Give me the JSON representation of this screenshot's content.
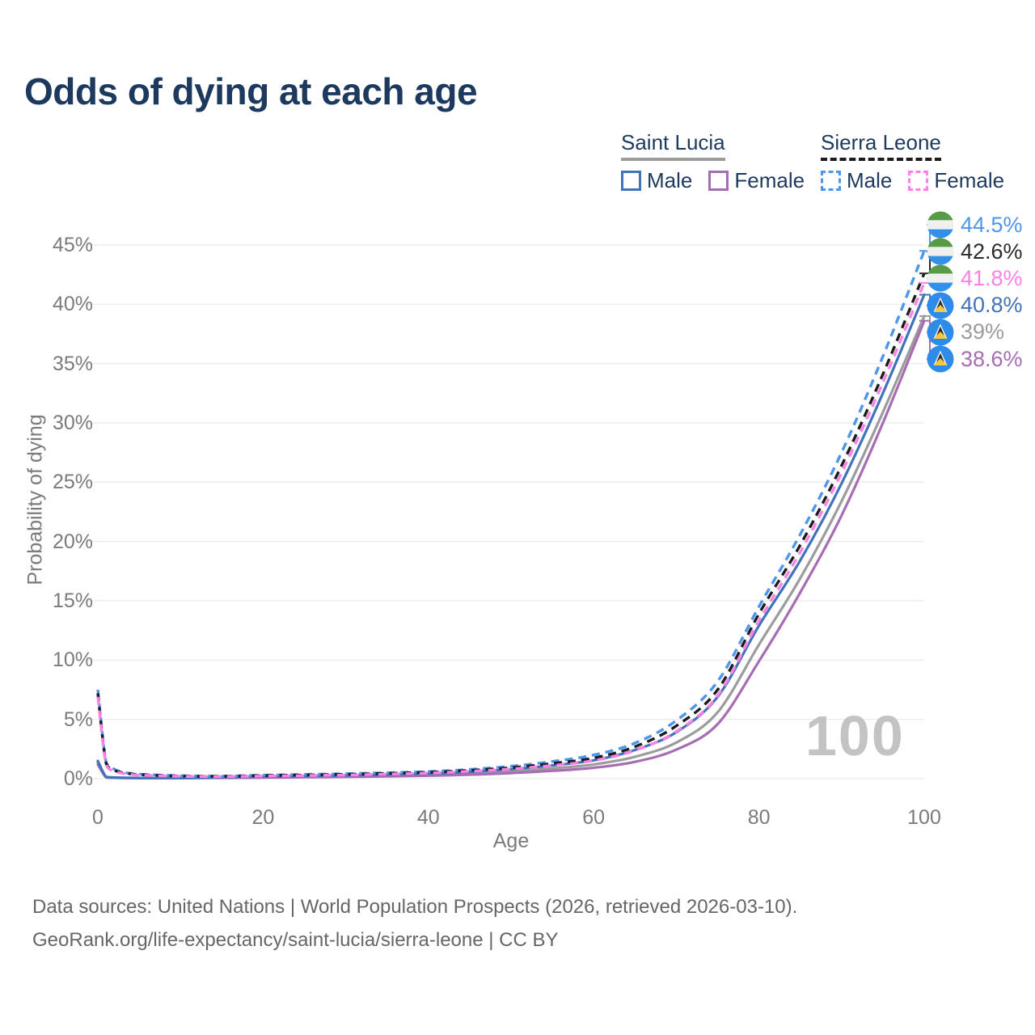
{
  "title": "Odds of dying at each age",
  "watermark": "100",
  "legend": {
    "groups": [
      {
        "name": "Saint Lucia",
        "underline": {
          "style": "solid",
          "color": "#9c9c9c"
        },
        "items": [
          {
            "label": "Male",
            "color": "#4273b8",
            "dashed": false
          },
          {
            "label": "Female",
            "color": "#a76db3",
            "dashed": false
          }
        ]
      },
      {
        "name": "Sierra Leone",
        "underline": {
          "style": "dashed",
          "color": "#1c1c1c"
        },
        "items": [
          {
            "label": "Male",
            "color": "#4e95ec",
            "dashed": true
          },
          {
            "label": "Female",
            "color": "#ff80e8",
            "dashed": true
          }
        ]
      }
    ]
  },
  "chart_data": {
    "type": "line",
    "xlabel": "Age",
    "ylabel": "Probability of dying",
    "x_ticks": [
      0,
      20,
      40,
      60,
      80,
      100
    ],
    "y_ticks": [
      0,
      5,
      10,
      15,
      20,
      25,
      30,
      35,
      40,
      45
    ],
    "xlim": [
      0,
      100
    ],
    "ylim": [
      0,
      47
    ],
    "grid": "horizontal",
    "legend_position": "top-right",
    "ages": [
      0,
      1,
      2,
      3,
      4,
      5,
      10,
      15,
      20,
      25,
      30,
      35,
      40,
      45,
      50,
      55,
      60,
      65,
      70,
      75,
      80,
      85,
      90,
      95,
      100
    ],
    "series": [
      {
        "name": "Saint Lucia Total",
        "country": "Saint Lucia",
        "sex": "Total",
        "color": "#9c9c9c",
        "dashed": false,
        "values": [
          1.35,
          0.13,
          0.09,
          0.07,
          0.06,
          0.055,
          0.05,
          0.09,
          0.13,
          0.17,
          0.21,
          0.26,
          0.34,
          0.45,
          0.62,
          0.87,
          1.2,
          1.85,
          3.05,
          5.6,
          11.3,
          16.9,
          23.4,
          30.9,
          39.0
        ]
      },
      {
        "name": "Saint Lucia Female",
        "country": "Saint Lucia",
        "sex": "Female",
        "color": "#a76db3",
        "dashed": false,
        "values": [
          1.2,
          0.11,
          0.08,
          0.06,
          0.055,
          0.05,
          0.045,
          0.07,
          0.09,
          0.12,
          0.15,
          0.19,
          0.25,
          0.34,
          0.47,
          0.66,
          0.92,
          1.42,
          2.45,
          4.6,
          9.9,
          15.7,
          22.2,
          30.0,
          38.6
        ]
      },
      {
        "name": "Saint Lucia Male",
        "country": "Saint Lucia",
        "sex": "Male",
        "color": "#4273b8",
        "dashed": false,
        "values": [
          1.5,
          0.15,
          0.1,
          0.08,
          0.07,
          0.06,
          0.06,
          0.12,
          0.18,
          0.23,
          0.28,
          0.34,
          0.43,
          0.57,
          0.8,
          1.12,
          1.55,
          2.42,
          3.92,
          6.9,
          12.9,
          18.4,
          24.9,
          32.5,
          40.8
        ]
      },
      {
        "name": "Sierra Leone Male",
        "country": "Sierra Leone",
        "sex": "Male",
        "color": "#4e95ec",
        "dashed": true,
        "values": [
          7.5,
          1.4,
          0.8,
          0.55,
          0.45,
          0.38,
          0.25,
          0.22,
          0.3,
          0.36,
          0.42,
          0.5,
          0.6,
          0.78,
          1.05,
          1.45,
          2.0,
          3.0,
          4.9,
          8.2,
          14.5,
          20.6,
          27.5,
          35.6,
          44.5
        ]
      },
      {
        "name": "Sierra Leone Total",
        "country": "Sierra Leone",
        "sex": "Total",
        "color": "#1c1c1c",
        "dashed": true,
        "values": [
          7.2,
          1.3,
          0.72,
          0.5,
          0.4,
          0.34,
          0.22,
          0.2,
          0.26,
          0.31,
          0.37,
          0.44,
          0.54,
          0.7,
          0.93,
          1.28,
          1.75,
          2.7,
          4.45,
          7.5,
          13.9,
          19.7,
          26.4,
          34.1,
          42.6
        ]
      },
      {
        "name": "Sierra Leone Female",
        "country": "Sierra Leone",
        "sex": "Female",
        "color": "#ff80e8",
        "dashed": true,
        "values": [
          6.9,
          1.2,
          0.65,
          0.45,
          0.36,
          0.3,
          0.2,
          0.18,
          0.22,
          0.26,
          0.31,
          0.38,
          0.47,
          0.62,
          0.82,
          1.12,
          1.52,
          2.38,
          3.98,
          7.0,
          13.3,
          19.1,
          25.8,
          33.4,
          41.8
        ]
      }
    ],
    "end_labels": [
      {
        "text": "44.5%",
        "value": 44.5,
        "color": "#4e95ec",
        "flag": "sierra-leone",
        "series": "Sierra Leone Male"
      },
      {
        "text": "42.6%",
        "value": 42.6,
        "color": "#2b2b2b",
        "flag": "sierra-leone",
        "series": "Sierra Leone Total"
      },
      {
        "text": "41.8%",
        "value": 41.8,
        "color": "#ff80e8",
        "flag": "sierra-leone",
        "series": "Sierra Leone Female"
      },
      {
        "text": "40.8%",
        "value": 40.8,
        "color": "#4273b8",
        "flag": "saint-lucia",
        "series": "Saint Lucia Male"
      },
      {
        "text": "39%",
        "value": 39.0,
        "color": "#9c9c9c",
        "flag": "saint-lucia",
        "series": "Saint Lucia Total"
      },
      {
        "text": "38.6%",
        "value": 38.6,
        "color": "#a76db3",
        "flag": "saint-lucia",
        "series": "Saint Lucia Female"
      }
    ]
  },
  "footer": {
    "line1": "Data sources: United Nations | World Population Prospects (2026, retrieved 2026-03-10).",
    "line2": "GeoRank.org/life-expectancy/saint-lucia/sierra-leone | CC BY"
  }
}
